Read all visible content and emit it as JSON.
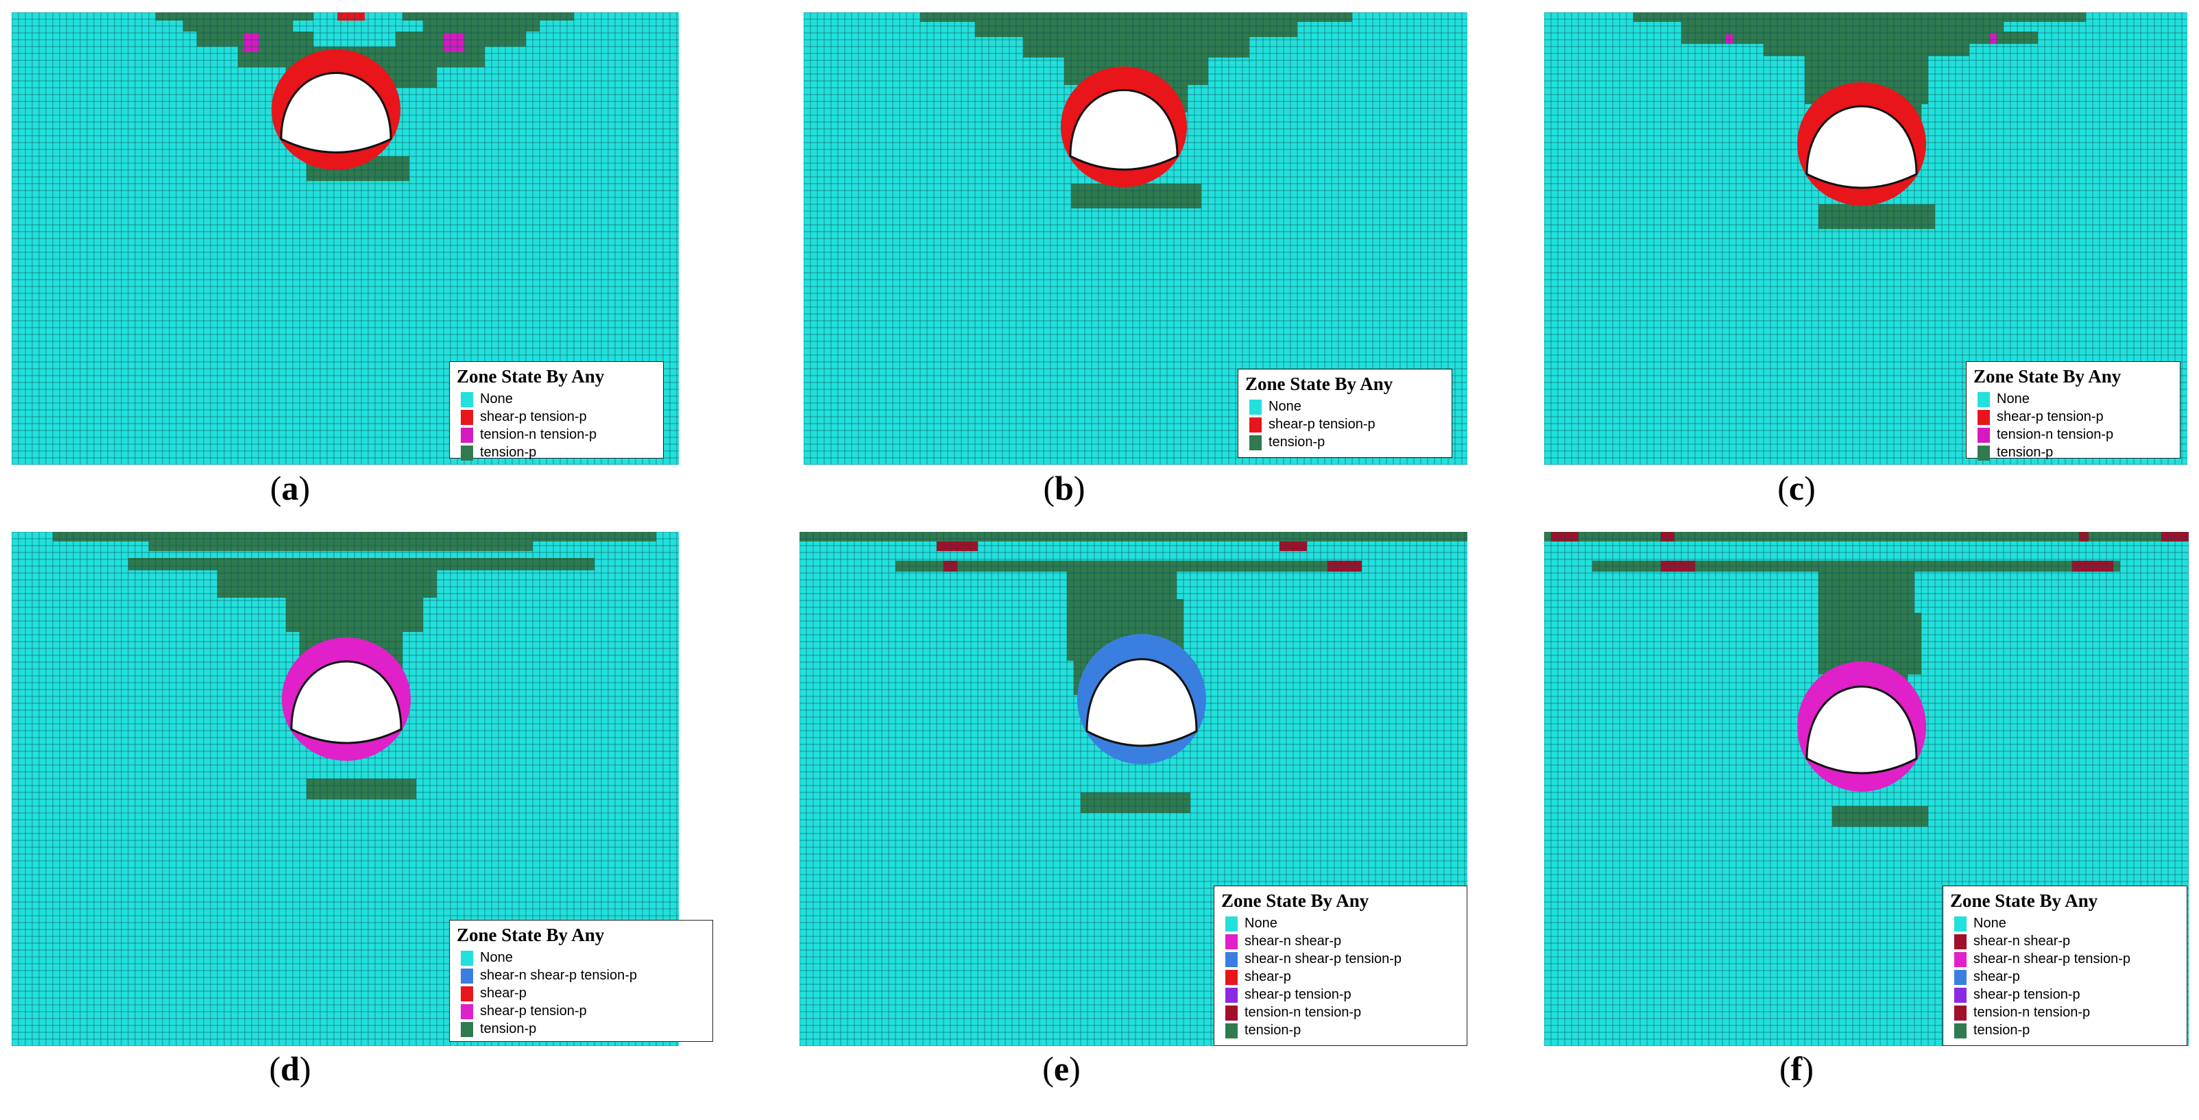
{
  "legend_title": "Zone State By Any",
  "colors": {
    "none": "#22e0dc",
    "tension_p": "#2f7a4e",
    "shear_p_tension_p": "#e8151b",
    "tension_n_tension_p": "#d61ac0",
    "shear_n_shear_p_tension_p": "#3a7fe0",
    "shear_p": "#e8151b",
    "shear_p_tension_p_d": "#e020c8",
    "shear_n_shear_p": "#e020c8",
    "shear_p_tension_p_ef": "#8a2be2",
    "tension_n_tension_p_ef": "#a0102a",
    "tunnel": "#ffffff",
    "grid": "#0b4f55"
  },
  "panels": [
    {
      "id": "a",
      "caption_letter": "a",
      "legend": [
        {
          "label": "None",
          "color": "#22e0dc"
        },
        {
          "label": "shear-p tension-p",
          "color": "#e8151b"
        },
        {
          "label": "tension-n tension-p",
          "color": "#d61ac0"
        },
        {
          "label": "tension-p",
          "color": "#2f7a4e"
        }
      ]
    },
    {
      "id": "b",
      "caption_letter": "b",
      "legend": [
        {
          "label": "None",
          "color": "#22e0dc"
        },
        {
          "label": "shear-p tension-p",
          "color": "#e8151b"
        },
        {
          "label": "tension-p",
          "color": "#2f7a4e"
        }
      ]
    },
    {
      "id": "c",
      "caption_letter": "c",
      "legend": [
        {
          "label": "None",
          "color": "#22e0dc"
        },
        {
          "label": "shear-p tension-p",
          "color": "#e8151b"
        },
        {
          "label": "tension-n tension-p",
          "color": "#d61ac0"
        },
        {
          "label": "tension-p",
          "color": "#2f7a4e"
        }
      ]
    },
    {
      "id": "d",
      "caption_letter": "d",
      "legend": [
        {
          "label": "None",
          "color": "#22e0dc"
        },
        {
          "label": "shear-n shear-p tension-p",
          "color": "#3a7fe0"
        },
        {
          "label": "shear-p",
          "color": "#e8151b"
        },
        {
          "label": "shear-p tension-p",
          "color": "#e020c8"
        },
        {
          "label": "tension-p",
          "color": "#2f7a4e"
        }
      ]
    },
    {
      "id": "e",
      "caption_letter": "e",
      "legend": [
        {
          "label": "None",
          "color": "#22e0dc"
        },
        {
          "label": "shear-n shear-p",
          "color": "#e020c8"
        },
        {
          "label": "shear-n shear-p tension-p",
          "color": "#3a7fe0"
        },
        {
          "label": "shear-p",
          "color": "#e8151b"
        },
        {
          "label": "shear-p tension-p",
          "color": "#8a2be2"
        },
        {
          "label": "tension-n tension-p",
          "color": "#a0102a"
        },
        {
          "label": "tension-p",
          "color": "#2f7a4e"
        }
      ]
    },
    {
      "id": "f",
      "caption_letter": "f",
      "legend": [
        {
          "label": "None",
          "color": "#22e0dc"
        },
        {
          "label": "shear-n shear-p",
          "color": "#a0102a"
        },
        {
          "label": "shear-n shear-p tension-p",
          "color": "#e020c8"
        },
        {
          "label": "shear-p",
          "color": "#3a7fe0"
        },
        {
          "label": "shear-p tension-p",
          "color": "#8a2be2"
        },
        {
          "label": "tension-n tension-p",
          "color": "#a0102a"
        },
        {
          "label": "tension-p",
          "color": "#2f7a4e"
        }
      ]
    }
  ]
}
